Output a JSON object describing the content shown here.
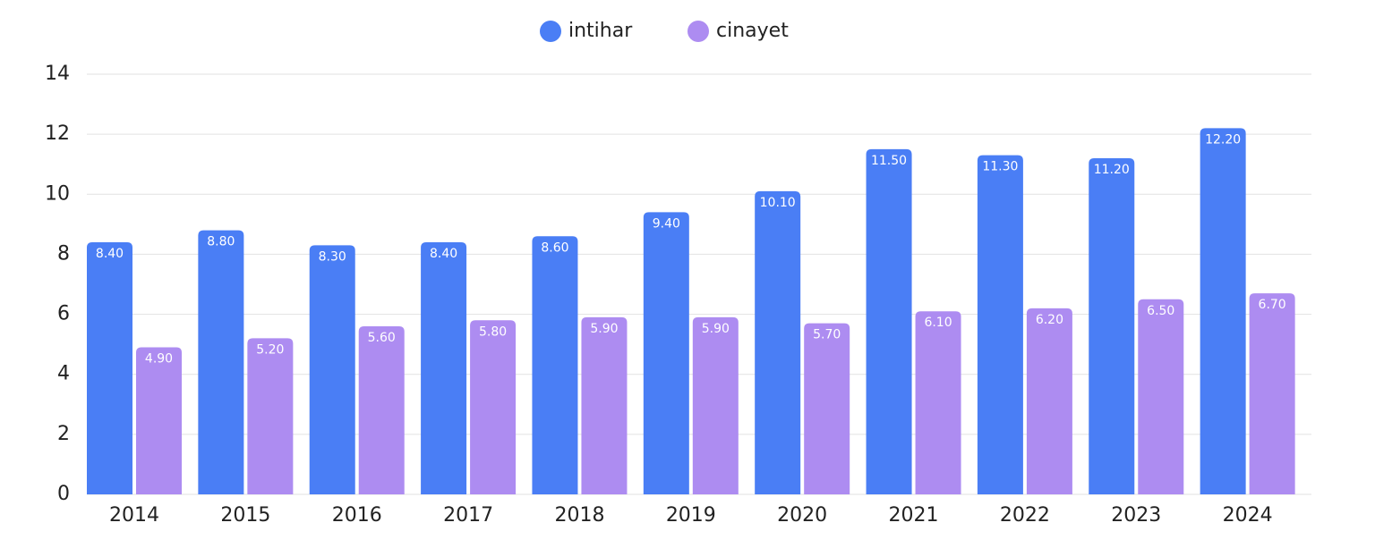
{
  "chart_data": {
    "type": "bar",
    "categories": [
      "2014",
      "2015",
      "2016",
      "2017",
      "2018",
      "2019",
      "2020",
      "2021",
      "2022",
      "2023",
      "2024"
    ],
    "series": [
      {
        "name": "intihar",
        "color": "#4a7ef5",
        "values": [
          8.4,
          8.8,
          8.3,
          8.4,
          8.6,
          9.4,
          10.1,
          11.5,
          11.3,
          11.2,
          12.2
        ],
        "value_labels": [
          "8.40",
          "8.80",
          "8.30",
          "8.40",
          "8.60",
          "9.40",
          "10.10",
          "11.50",
          "11.30",
          "11.20",
          "12.20"
        ]
      },
      {
        "name": "cinayet",
        "color": "#ad8cf1",
        "values": [
          4.9,
          5.2,
          5.6,
          5.8,
          5.9,
          5.9,
          5.7,
          6.1,
          6.2,
          6.5,
          6.7
        ],
        "value_labels": [
          "4.90",
          "5.20",
          "5.60",
          "5.80",
          "5.90",
          "5.90",
          "5.70",
          "6.10",
          "6.20",
          "6.50",
          "6.70"
        ]
      }
    ],
    "ylim": [
      0,
      14
    ],
    "yticks": [
      0,
      2,
      4,
      6,
      8,
      10,
      12,
      14
    ],
    "grid": true,
    "legend": "top"
  }
}
